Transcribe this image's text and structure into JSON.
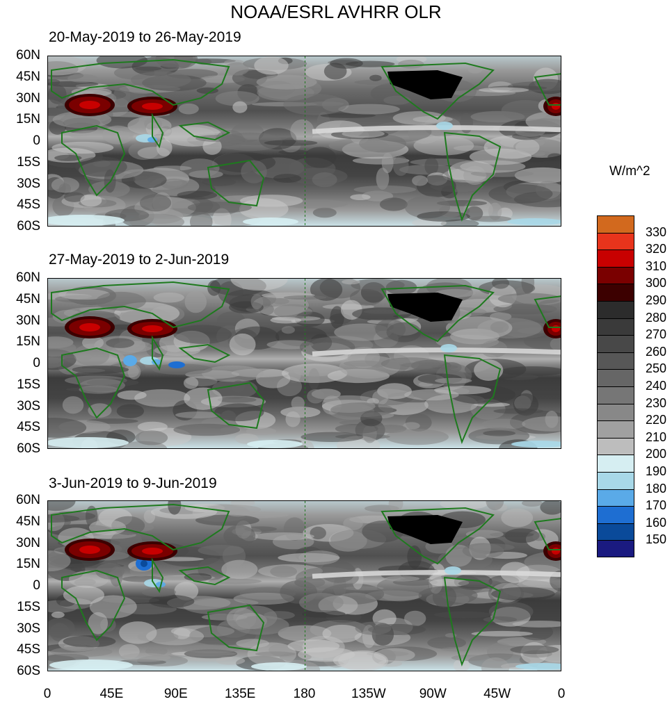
{
  "title": "NOAA/ESRL AVHRR OLR",
  "units": "W/m^2",
  "lat_labels": [
    "60N",
    "45N",
    "30N",
    "15N",
    "0",
    "15S",
    "30S",
    "45S",
    "60S"
  ],
  "lon_labels": [
    "0",
    "45E",
    "90E",
    "135E",
    "180",
    "135W",
    "90W",
    "45W",
    "0"
  ],
  "panels": [
    {
      "title": "20-May-2019 to 26-May-2019"
    },
    {
      "title": "27-May-2019 to 2-Jun-2019"
    },
    {
      "title": "3-Jun-2019 to 9-Jun-2019"
    }
  ],
  "legend": {
    "labels": [
      "330",
      "320",
      "310",
      "300",
      "290",
      "280",
      "270",
      "260",
      "250",
      "240",
      "230",
      "220",
      "210",
      "200",
      "190",
      "180",
      "170",
      "160",
      "150"
    ],
    "colors": [
      "#d2691e",
      "#e8341c",
      "#c80000",
      "#7a0000",
      "#3c0000",
      "#2c2c2c",
      "#3a3a3a",
      "#484848",
      "#575757",
      "#666666",
      "#767676",
      "#888888",
      "#a0a0a0",
      "#bdbdbd",
      "#d6eef2",
      "#a8d8e8",
      "#5aaae8",
      "#1e6ed2",
      "#0a4a9a",
      "#1a1a80"
    ]
  },
  "colors": {
    "land_outline": "#1e7a1e",
    "us_fill": "#000000",
    "tropics_band": "#c8c8c8"
  }
}
